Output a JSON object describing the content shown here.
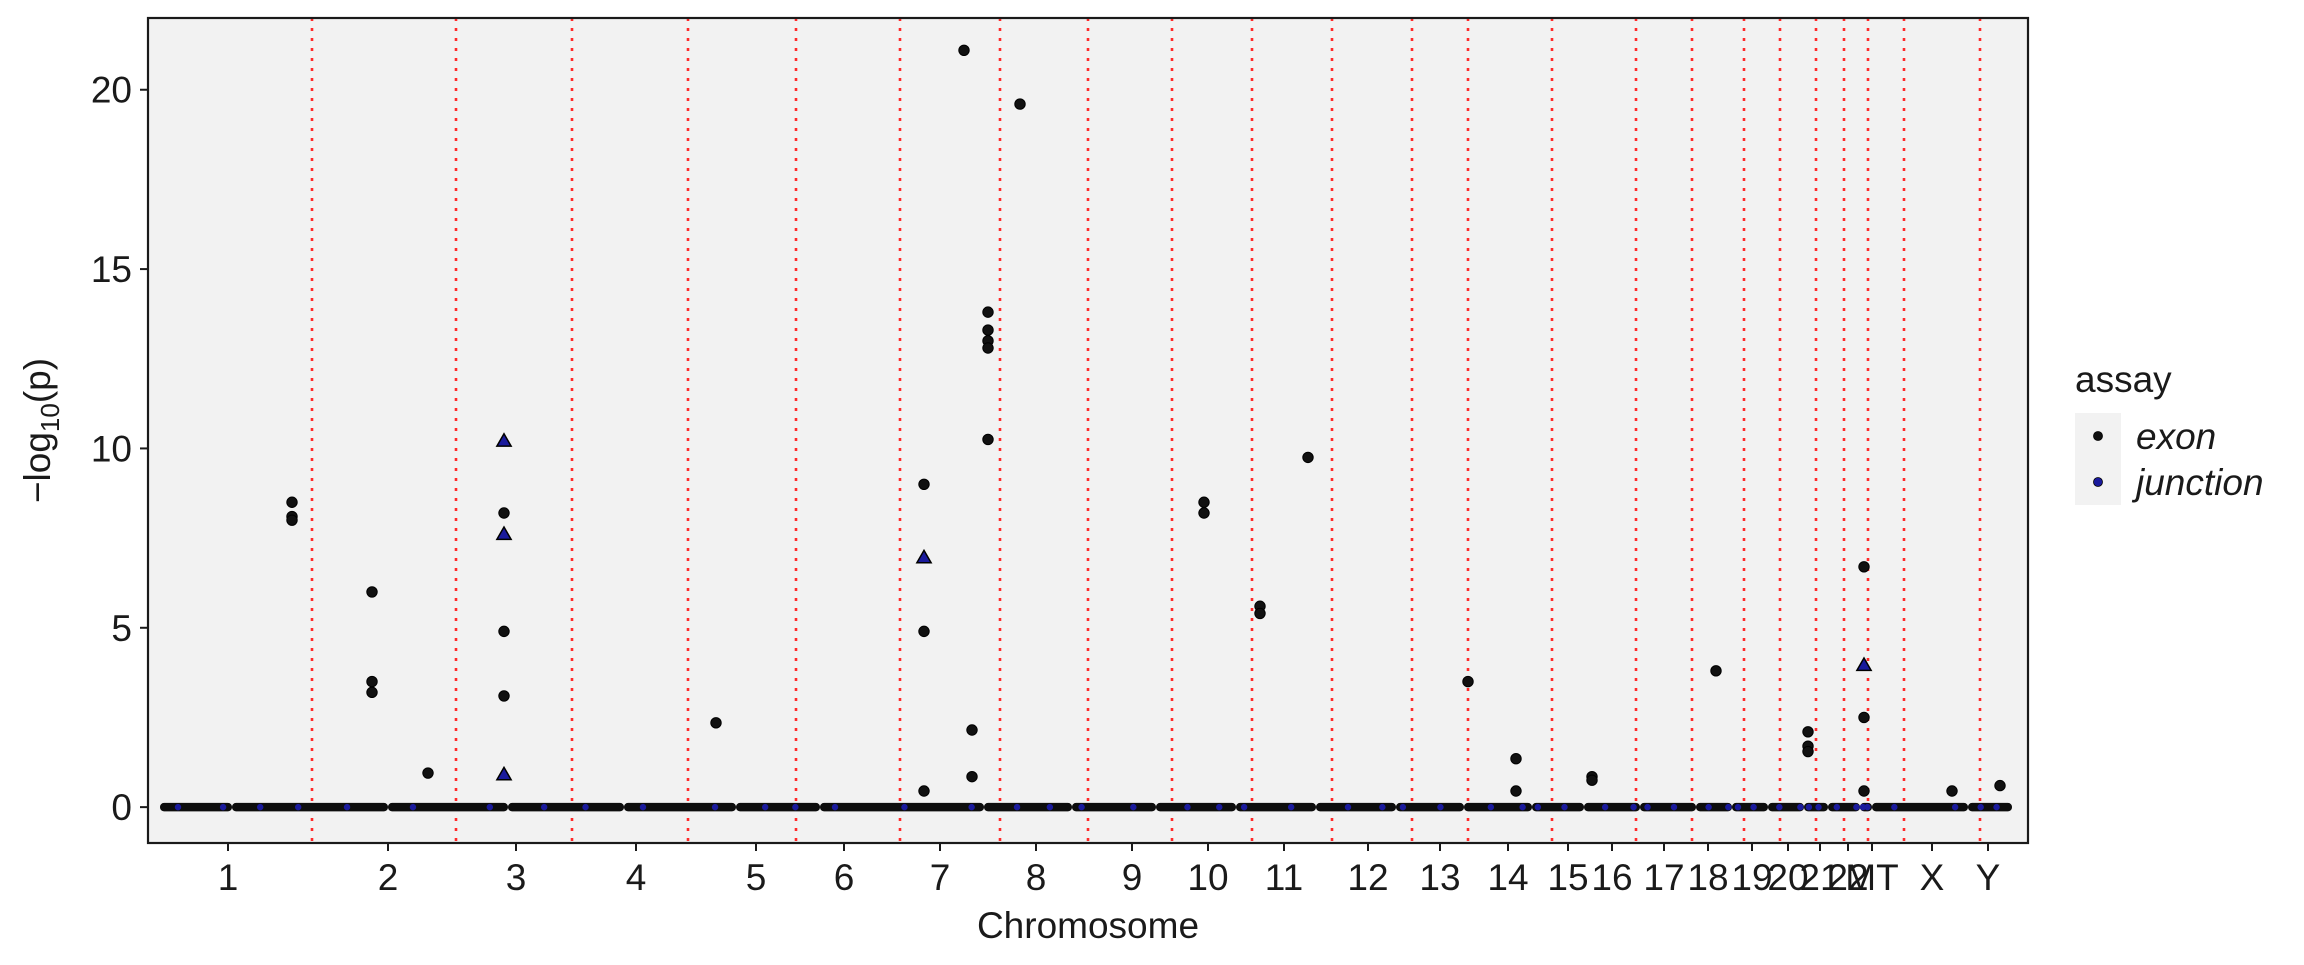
{
  "chart_data": {
    "type": "scatter",
    "title": "",
    "xlabel": "Chromosome",
    "ylabel_prefix": "−log",
    "ylabel_sub": "10",
    "ylabel_suffix": "(p)",
    "ylim": [
      -1,
      22
    ],
    "yticks": [
      0,
      5,
      10,
      15,
      20
    ],
    "grid": false,
    "legend": {
      "title": "assay",
      "position": "right",
      "entries": [
        {
          "label": "exon",
          "color": "#111111",
          "shape": "circle"
        },
        {
          "label": "junction",
          "color": "#1a1a9c",
          "shape": "triangle"
        }
      ]
    },
    "colors": {
      "panel": "#f2f2f2",
      "boundary": "#ff2a2a",
      "exon": "#111111",
      "junction": "#1a1a9c"
    },
    "x_range": [
      0.0,
      23.5
    ],
    "chromosomes": [
      {
        "label": "1",
        "start": 0.15,
        "end": 1.05
      },
      {
        "label": "2",
        "start": 1.05,
        "end": 3.0
      },
      {
        "label": "3",
        "start": 3.0,
        "end": 4.5
      },
      {
        "label": "4",
        "start": 4.5,
        "end": 5.95
      },
      {
        "label": "5",
        "start": 5.95,
        "end": 7.35
      },
      {
        "label": "6",
        "start": 7.35,
        "end": 8.4
      },
      {
        "label": "7",
        "start": 8.4,
        "end": 10.45
      },
      {
        "label": "8",
        "start": 10.45,
        "end": 11.55
      },
      {
        "label": "9",
        "start": 11.55,
        "end": 12.6
      },
      {
        "label": "10",
        "start": 12.6,
        "end": 13.6
      },
      {
        "label": "11",
        "start": 13.6,
        "end": 14.6
      },
      {
        "label": "12",
        "start": 14.6,
        "end": 15.6
      },
      {
        "label": "13",
        "start": 15.6,
        "end": 16.45
      },
      {
        "label": "14",
        "start": 16.45,
        "end": 17.3
      },
      {
        "label": "15",
        "start": 17.3,
        "end": 17.95
      },
      {
        "label": "16",
        "start": 17.95,
        "end": 18.65
      },
      {
        "label": "17",
        "start": 18.65,
        "end": 19.35
      },
      {
        "label": "18",
        "start": 19.35,
        "end": 19.8
      },
      {
        "label": "19",
        "start": 19.8,
        "end": 20.25
      },
      {
        "label": "20",
        "start": 20.25,
        "end": 20.7
      },
      {
        "label": "21",
        "start": 20.7,
        "end": 21.0
      },
      {
        "label": "22",
        "start": 21.0,
        "end": 21.4
      },
      {
        "label": "MT",
        "start": 21.4,
        "end": 21.55
      },
      {
        "label": "X",
        "start": 21.55,
        "end": 22.75
      },
      {
        "label": "Y",
        "start": 22.75,
        "end": 23.3
      }
    ],
    "tick_labels": [
      "1",
      "2",
      "3",
      "4",
      "5",
      "6",
      "7",
      "8",
      "9",
      "10",
      "11",
      "12",
      "13",
      "14",
      "15",
      "16",
      "17",
      "18",
      "19",
      "20",
      "21",
      "22",
      "MT",
      "X",
      "Y"
    ],
    "tick_positions": [
      1.0,
      3.0,
      4.6,
      6.1,
      7.6,
      8.7,
      9.9,
      11.1,
      12.3,
      13.25,
      14.2,
      15.25,
      16.15,
      17.0,
      17.75,
      18.3,
      18.95,
      19.5,
      20.05,
      20.5,
      20.9,
      21.25,
      21.55,
      22.3,
      23.0
    ],
    "boundaries": [
      2.05,
      3.85,
      5.3,
      6.75,
      8.1,
      9.4,
      10.65,
      11.75,
      12.8,
      13.8,
      14.8,
      15.8,
      16.5,
      17.55,
      18.6,
      19.3,
      19.95,
      20.4,
      20.85,
      21.2,
      21.5,
      21.95,
      22.9
    ],
    "series": [
      {
        "name": "exon",
        "points": [
          {
            "x": 1.8,
            "y": 8.5
          },
          {
            "x": 1.8,
            "y": 8.1
          },
          {
            "x": 1.8,
            "y": 8.0
          },
          {
            "x": 2.8,
            "y": 6.0
          },
          {
            "x": 2.8,
            "y": 3.5
          },
          {
            "x": 2.8,
            "y": 3.2
          },
          {
            "x": 3.5,
            "y": 0.95
          },
          {
            "x": 4.45,
            "y": 8.2
          },
          {
            "x": 4.45,
            "y": 4.9
          },
          {
            "x": 4.45,
            "y": 3.1
          },
          {
            "x": 7.1,
            "y": 2.35
          },
          {
            "x": 9.7,
            "y": 9.0
          },
          {
            "x": 9.7,
            "y": 4.9
          },
          {
            "x": 9.7,
            "y": 0.45
          },
          {
            "x": 10.2,
            "y": 21.1
          },
          {
            "x": 10.3,
            "y": 2.15
          },
          {
            "x": 10.3,
            "y": 0.85
          },
          {
            "x": 10.5,
            "y": 13.8
          },
          {
            "x": 10.5,
            "y": 13.3
          },
          {
            "x": 10.5,
            "y": 13.0
          },
          {
            "x": 10.5,
            "y": 12.8
          },
          {
            "x": 10.5,
            "y": 10.25
          },
          {
            "x": 10.9,
            "y": 19.6
          },
          {
            "x": 13.2,
            "y": 8.5
          },
          {
            "x": 13.2,
            "y": 8.2
          },
          {
            "x": 13.9,
            "y": 5.6
          },
          {
            "x": 13.9,
            "y": 5.4
          },
          {
            "x": 14.5,
            "y": 9.75
          },
          {
            "x": 16.5,
            "y": 3.5
          },
          {
            "x": 17.1,
            "y": 1.35
          },
          {
            "x": 17.1,
            "y": 0.45
          },
          {
            "x": 18.05,
            "y": 0.85
          },
          {
            "x": 18.05,
            "y": 0.75
          },
          {
            "x": 19.6,
            "y": 3.8
          },
          {
            "x": 20.75,
            "y": 2.1
          },
          {
            "x": 20.75,
            "y": 1.7
          },
          {
            "x": 20.75,
            "y": 1.55
          },
          {
            "x": 21.45,
            "y": 6.7
          },
          {
            "x": 21.45,
            "y": 2.5
          },
          {
            "x": 21.45,
            "y": 0.45
          },
          {
            "x": 22.55,
            "y": 0.45
          },
          {
            "x": 23.15,
            "y": 0.6
          }
        ]
      },
      {
        "name": "junction",
        "points": [
          {
            "x": 4.45,
            "y": 10.2
          },
          {
            "x": 4.45,
            "y": 7.6
          },
          {
            "x": 4.45,
            "y": 0.9
          },
          {
            "x": 9.7,
            "y": 6.95
          },
          {
            "x": 21.45,
            "y": 3.95
          }
        ]
      }
    ]
  }
}
